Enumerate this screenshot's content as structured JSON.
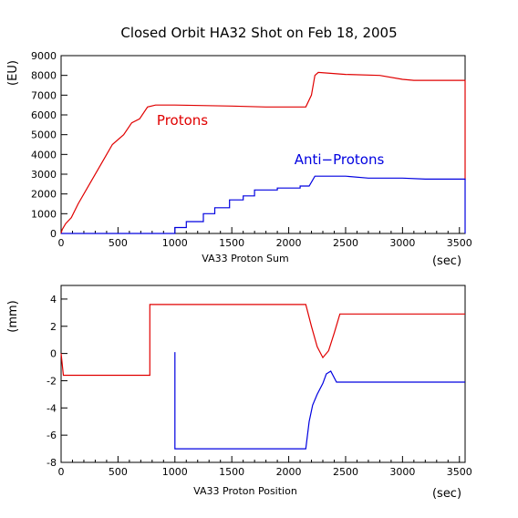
{
  "page_title": "Closed Orbit HA32 Shot on Feb 18, 2005",
  "colors": {
    "red": "#e00000",
    "blue": "#0000e0",
    "axis": "#000000"
  },
  "chart_data": [
    {
      "type": "line",
      "ylabel": "(EU)",
      "xlabel": "VA33 Proton Sum",
      "xunit": "(sec)",
      "xlim": [
        0,
        3550
      ],
      "ylim": [
        0,
        9000
      ],
      "xticks": [
        0,
        500,
        1000,
        1500,
        2000,
        2500,
        3000,
        3500
      ],
      "yticks": [
        0,
        1000,
        2000,
        3000,
        4000,
        5000,
        6000,
        7000,
        8000,
        9000
      ],
      "grid": false,
      "series": [
        {
          "name": "Protons",
          "color": "#e00000",
          "step": false,
          "points": [
            [
              0,
              0
            ],
            [
              10,
              200
            ],
            [
              40,
              500
            ],
            [
              90,
              800
            ],
            [
              150,
              1500
            ],
            [
              250,
              2500
            ],
            [
              350,
              3500
            ],
            [
              450,
              4500
            ],
            [
              550,
              5000
            ],
            [
              620,
              5600
            ],
            [
              690,
              5800
            ],
            [
              760,
              6400
            ],
            [
              830,
              6500
            ],
            [
              1000,
              6500
            ],
            [
              1500,
              6450
            ],
            [
              1800,
              6400
            ],
            [
              2000,
              6400
            ],
            [
              2150,
              6400
            ],
            [
              2200,
              7000
            ],
            [
              2230,
              8000
            ],
            [
              2260,
              8150
            ],
            [
              2500,
              8050
            ],
            [
              2800,
              8000
            ],
            [
              3000,
              7800
            ],
            [
              3100,
              7750
            ],
            [
              3550,
              7750
            ],
            [
              3550,
              2700
            ]
          ]
        },
        {
          "name": "Anti-Protons",
          "color": "#0000e0",
          "step": true,
          "points": [
            [
              0,
              0
            ],
            [
              1000,
              0
            ],
            [
              1000,
              300
            ],
            [
              1100,
              300
            ],
            [
              1100,
              600
            ],
            [
              1250,
              600
            ],
            [
              1250,
              1000
            ],
            [
              1350,
              1000
            ],
            [
              1350,
              1300
            ],
            [
              1480,
              1300
            ],
            [
              1480,
              1700
            ],
            [
              1600,
              1700
            ],
            [
              1600,
              1900
            ],
            [
              1700,
              1900
            ],
            [
              1700,
              2200
            ],
            [
              1900,
              2200
            ],
            [
              1900,
              2300
            ],
            [
              2100,
              2300
            ],
            [
              2100,
              2400
            ],
            [
              2180,
              2400
            ],
            [
              2230,
              2900
            ],
            [
              2500,
              2900
            ],
            [
              2700,
              2800
            ],
            [
              3000,
              2800
            ],
            [
              3200,
              2750
            ],
            [
              3550,
              2750
            ],
            [
              3550,
              0
            ]
          ]
        }
      ]
    },
    {
      "type": "line",
      "ylabel": "(mm)",
      "xlabel": "VA33 Proton Position",
      "xunit": "(sec)",
      "xlim": [
        0,
        3550
      ],
      "ylim": [
        -8,
        5
      ],
      "xticks": [
        0,
        500,
        1000,
        1500,
        2000,
        2500,
        3000,
        3500
      ],
      "yticks": [
        -8,
        -6,
        -4,
        -2,
        0,
        2,
        4
      ],
      "grid": false,
      "series": [
        {
          "name": "",
          "color": "#e00000",
          "step": false,
          "points": [
            [
              0,
              0
            ],
            [
              20,
              -1.6
            ],
            [
              780,
              -1.6
            ],
            [
              780,
              3.6
            ],
            [
              2150,
              3.6
            ],
            [
              2200,
              2.0
            ],
            [
              2250,
              0.5
            ],
            [
              2300,
              -0.3
            ],
            [
              2350,
              0.2
            ],
            [
              2400,
              1.5
            ],
            [
              2450,
              2.9
            ],
            [
              3550,
              2.9
            ]
          ]
        },
        {
          "name": "",
          "color": "#0000e0",
          "step": false,
          "points": [
            [
              1000,
              0.1
            ],
            [
              1000,
              -7.0
            ],
            [
              2150,
              -7.0
            ],
            [
              2180,
              -5.0
            ],
            [
              2210,
              -3.8
            ],
            [
              2250,
              -3.0
            ],
            [
              2300,
              -2.2
            ],
            [
              2330,
              -1.5
            ],
            [
              2370,
              -1.3
            ],
            [
              2420,
              -2.1
            ],
            [
              3550,
              -2.1
            ]
          ]
        }
      ]
    }
  ],
  "labels": {
    "protons": "Protons",
    "antiprotons": "Anti−Protons"
  }
}
